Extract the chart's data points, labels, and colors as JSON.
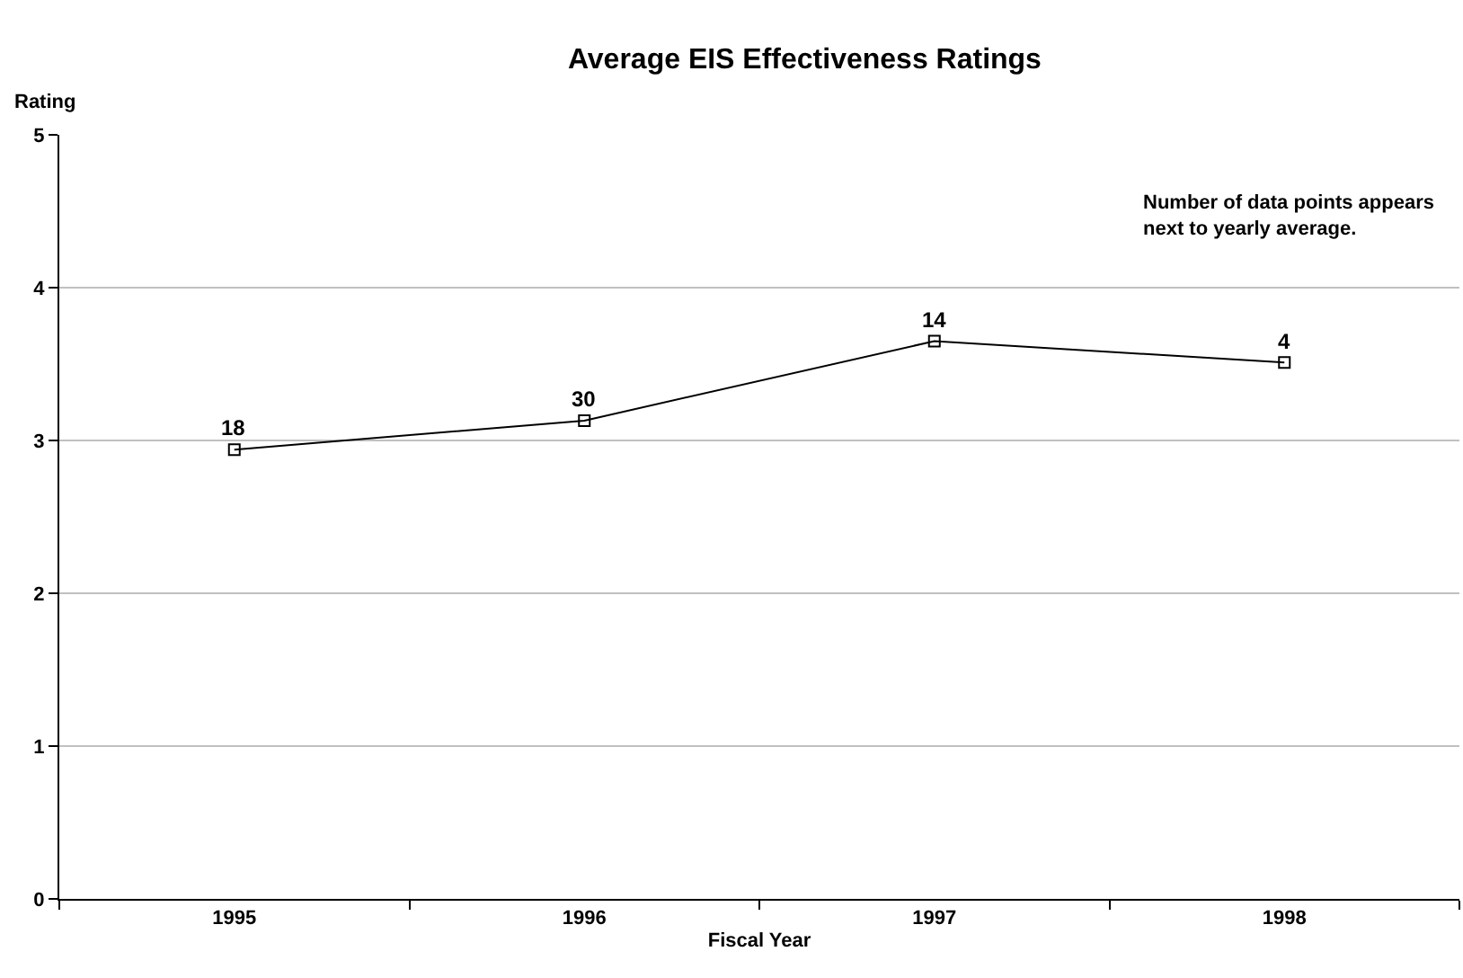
{
  "chart_data": {
    "type": "line",
    "title": "Average EIS Effectiveness Ratings",
    "xlabel": "Fiscal Year",
    "ylabel": "Rating",
    "categories": [
      "1995",
      "1996",
      "1997",
      "1998"
    ],
    "series": [
      {
        "color": "#000000",
        "values": [
          2.94,
          3.13,
          3.65,
          3.51
        ]
      }
    ],
    "ylim": [
      0,
      5
    ],
    "yticks": [
      0,
      1,
      2,
      3,
      4,
      5
    ],
    "grid": "y",
    "legend": false,
    "marker": "square",
    "line_style": "solid",
    "annotations": [
      "Number of data points appears next to yearly average.",
      {
        "text": "18",
        "x": "1995",
        "y": 2.94
      },
      {
        "text": "30",
        "x": "1996",
        "y": 3.13
      },
      {
        "text": "14",
        "x": "1997",
        "y": 3.65
      },
      {
        "text": "4",
        "x": "1998",
        "y": 3.51
      }
    ]
  }
}
